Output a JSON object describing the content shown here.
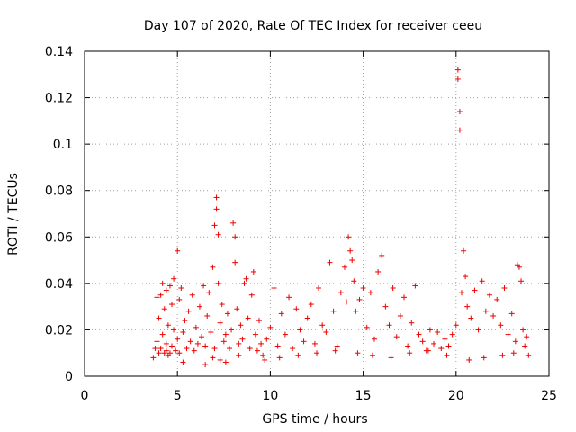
{
  "chart_data": {
    "type": "scatter",
    "title": "Day 107 of 2020, Rate Of TEC Index for receiver ceeu",
    "xlabel": "GPS time / hours",
    "ylabel": "ROTI / TECUs",
    "xlim": [
      0,
      25
    ],
    "ylim": [
      0,
      0.14
    ],
    "xticks": [
      0,
      5,
      10,
      15,
      20,
      25
    ],
    "xtick_labels": [
      "0",
      "5",
      "10",
      "15",
      "20",
      "25"
    ],
    "yticks": [
      0,
      0.02,
      0.04,
      0.06,
      0.08,
      0.1,
      0.12,
      0.14
    ],
    "ytick_labels": [
      "0",
      "0.02",
      "0.04",
      "0.06",
      "0.08",
      "0.1",
      "0.12",
      "0.14"
    ],
    "grid": true,
    "legend": "none",
    "marker": "+",
    "color": "#ee0000",
    "series": [
      {
        "name": "ROTI",
        "x": [
          3.7,
          3.8,
          3.9,
          3.9,
          4.0,
          4.0,
          4.1,
          4.1,
          4.2,
          4.2,
          4.3,
          4.3,
          4.4,
          4.4,
          4.5,
          4.5,
          4.6,
          4.7,
          4.7,
          4.8,
          4.8,
          4.9,
          5.0,
          5.0,
          5.1,
          5.1,
          5.2,
          5.3,
          5.4,
          5.5,
          5.6,
          5.7,
          5.8,
          5.9,
          6.0,
          6.1,
          6.2,
          6.3,
          6.4,
          6.5,
          6.6,
          6.7,
          6.8,
          6.9,
          7.0,
          7.0,
          7.1,
          7.1,
          7.2,
          7.2,
          7.3,
          7.4,
          7.5,
          7.6,
          7.7,
          7.8,
          7.9,
          8.0,
          8.1,
          8.1,
          8.2,
          8.3,
          8.4,
          8.5,
          8.6,
          8.7,
          8.8,
          8.9,
          9.0,
          9.1,
          9.2,
          9.3,
          9.4,
          9.5,
          9.6,
          9.8,
          10.0,
          10.2,
          10.4,
          10.6,
          10.8,
          11.0,
          11.2,
          11.4,
          11.6,
          11.8,
          12.0,
          12.2,
          12.4,
          12.6,
          12.8,
          13.0,
          13.2,
          13.4,
          13.6,
          13.8,
          14.0,
          14.1,
          14.2,
          14.3,
          14.4,
          14.5,
          14.6,
          14.8,
          15.0,
          15.2,
          15.4,
          15.6,
          15.8,
          16.0,
          16.2,
          16.4,
          16.6,
          16.8,
          17.0,
          17.2,
          17.4,
          17.6,
          17.8,
          18.0,
          18.2,
          18.4,
          18.6,
          18.8,
          19.0,
          19.2,
          19.4,
          19.6,
          19.8,
          20.0,
          20.1,
          20.1,
          20.2,
          20.2,
          20.3,
          20.4,
          20.5,
          20.6,
          20.8,
          21.0,
          21.2,
          21.4,
          21.6,
          21.8,
          22.0,
          22.2,
          22.4,
          22.6,
          22.8,
          23.0,
          23.2,
          23.3,
          23.4,
          23.5,
          23.6,
          23.7,
          23.8,
          23.9,
          4.4,
          4.6,
          5.3,
          6.5,
          6.9,
          7.3,
          7.6,
          8.3,
          9.7,
          10.5,
          11.5,
          12.5,
          13.5,
          14.7,
          15.5,
          16.5,
          17.5,
          18.5,
          19.5,
          20.7,
          21.5,
          22.5,
          23.1
        ],
        "y": [
          0.008,
          0.012,
          0.015,
          0.034,
          0.01,
          0.025,
          0.035,
          0.012,
          0.04,
          0.018,
          0.029,
          0.01,
          0.037,
          0.014,
          0.022,
          0.009,
          0.039,
          0.031,
          0.013,
          0.042,
          0.02,
          0.011,
          0.054,
          0.016,
          0.033,
          0.01,
          0.038,
          0.019,
          0.024,
          0.012,
          0.028,
          0.015,
          0.035,
          0.011,
          0.021,
          0.014,
          0.03,
          0.017,
          0.039,
          0.013,
          0.026,
          0.036,
          0.019,
          0.047,
          0.012,
          0.065,
          0.077,
          0.072,
          0.061,
          0.04,
          0.023,
          0.031,
          0.015,
          0.018,
          0.027,
          0.012,
          0.02,
          0.066,
          0.06,
          0.049,
          0.029,
          0.014,
          0.022,
          0.016,
          0.04,
          0.042,
          0.025,
          0.012,
          0.035,
          0.045,
          0.018,
          0.011,
          0.024,
          0.014,
          0.009,
          0.016,
          0.021,
          0.038,
          0.013,
          0.027,
          0.018,
          0.034,
          0.012,
          0.029,
          0.02,
          0.015,
          0.025,
          0.031,
          0.014,
          0.038,
          0.022,
          0.019,
          0.049,
          0.028,
          0.013,
          0.036,
          0.047,
          0.032,
          0.06,
          0.054,
          0.05,
          0.041,
          0.028,
          0.033,
          0.038,
          0.021,
          0.036,
          0.016,
          0.045,
          0.052,
          0.03,
          0.022,
          0.038,
          0.017,
          0.026,
          0.034,
          0.013,
          0.023,
          0.039,
          0.018,
          0.015,
          0.011,
          0.02,
          0.014,
          0.019,
          0.012,
          0.016,
          0.013,
          0.018,
          0.022,
          0.132,
          0.128,
          0.114,
          0.106,
          0.036,
          0.054,
          0.043,
          0.03,
          0.025,
          0.037,
          0.02,
          0.041,
          0.028,
          0.035,
          0.026,
          0.033,
          0.022,
          0.038,
          0.018,
          0.027,
          0.015,
          0.048,
          0.047,
          0.041,
          0.02,
          0.013,
          0.017,
          0.009,
          0.011,
          0.01,
          0.006,
          0.005,
          0.008,
          0.007,
          0.006,
          0.009,
          0.007,
          0.008,
          0.009,
          0.01,
          0.011,
          0.01,
          0.009,
          0.008,
          0.01,
          0.011,
          0.009,
          0.007,
          0.008,
          0.009,
          0.01
        ]
      }
    ]
  }
}
